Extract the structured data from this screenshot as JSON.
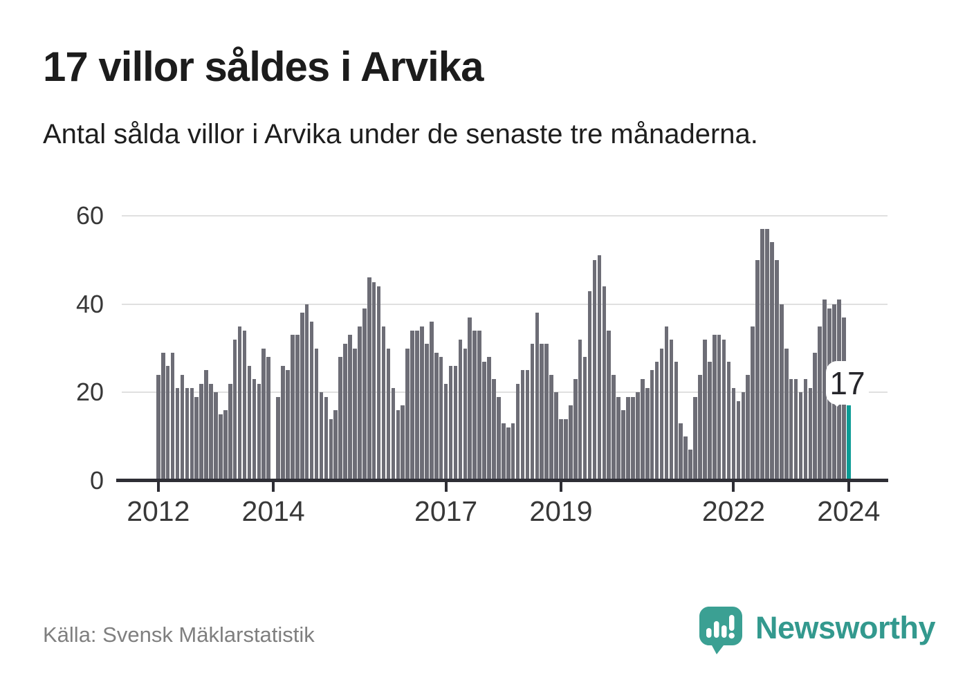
{
  "header": {
    "title": "17 villor såldes i Arvika",
    "subtitle": "Antal sålda villor i Arvika under de senaste tre månaderna."
  },
  "chart_data": {
    "type": "bar",
    "title": "17 villor såldes i Arvika",
    "subtitle": "Antal sålda villor i Arvika under de senaste tre månaderna.",
    "xlabel": "",
    "ylabel": "",
    "ylim": [
      0,
      60
    ],
    "y_ticks": [
      0,
      20,
      40,
      60
    ],
    "grid": "horizontal",
    "legend": "none",
    "frequency": "monthly",
    "x_tick_labels": [
      "2012",
      "2014",
      "2017",
      "2019",
      "2022",
      "2024"
    ],
    "x_tick_indices": [
      0,
      24,
      60,
      84,
      120,
      144
    ],
    "values": [
      24,
      29,
      26,
      29,
      21,
      24,
      21,
      21,
      19,
      22,
      25,
      22,
      20,
      15,
      16,
      22,
      32,
      35,
      34,
      26,
      23,
      22,
      30,
      28,
      null,
      19,
      26,
      25,
      33,
      33,
      38,
      40,
      36,
      30,
      20,
      19,
      14,
      16,
      28,
      31,
      33,
      30,
      35,
      39,
      46,
      45,
      44,
      35,
      30,
      21,
      16,
      17,
      30,
      34,
      34,
      35,
      31,
      36,
      29,
      28,
      22,
      26,
      26,
      32,
      30,
      37,
      34,
      34,
      27,
      28,
      23,
      19,
      13,
      12,
      13,
      22,
      25,
      25,
      31,
      38,
      31,
      31,
      24,
      20,
      14,
      14,
      17,
      23,
      32,
      28,
      43,
      50,
      51,
      44,
      34,
      24,
      19,
      16,
      19,
      19,
      20,
      23,
      21,
      25,
      27,
      30,
      35,
      32,
      27,
      13,
      10,
      7,
      19,
      24,
      32,
      27,
      33,
      33,
      32,
      27,
      21,
      18,
      20,
      24,
      35,
      50,
      57,
      57,
      54,
      50,
      40,
      30,
      23,
      23,
      20,
      23,
      21,
      29,
      35,
      41,
      39,
      40,
      41,
      37,
      17
    ],
    "highlight": {
      "index": 144,
      "value": 17,
      "label": "17"
    }
  },
  "footer": {
    "source": "Källa: Svensk Mäklarstatistik",
    "brand": "Newsworthy"
  },
  "colors": {
    "bar": "#6d6d76",
    "highlight": "#0b9b95",
    "axis": "#2e2e35",
    "grid": "#e0e0e0",
    "title": "#1c1c1c",
    "tick_label": "#383838",
    "source_text": "#7f7f7f",
    "brand_text": "#33998e",
    "brand_bubble": "#3ba093"
  },
  "icons": {
    "logo": "chart-speech-bubble-icon"
  }
}
